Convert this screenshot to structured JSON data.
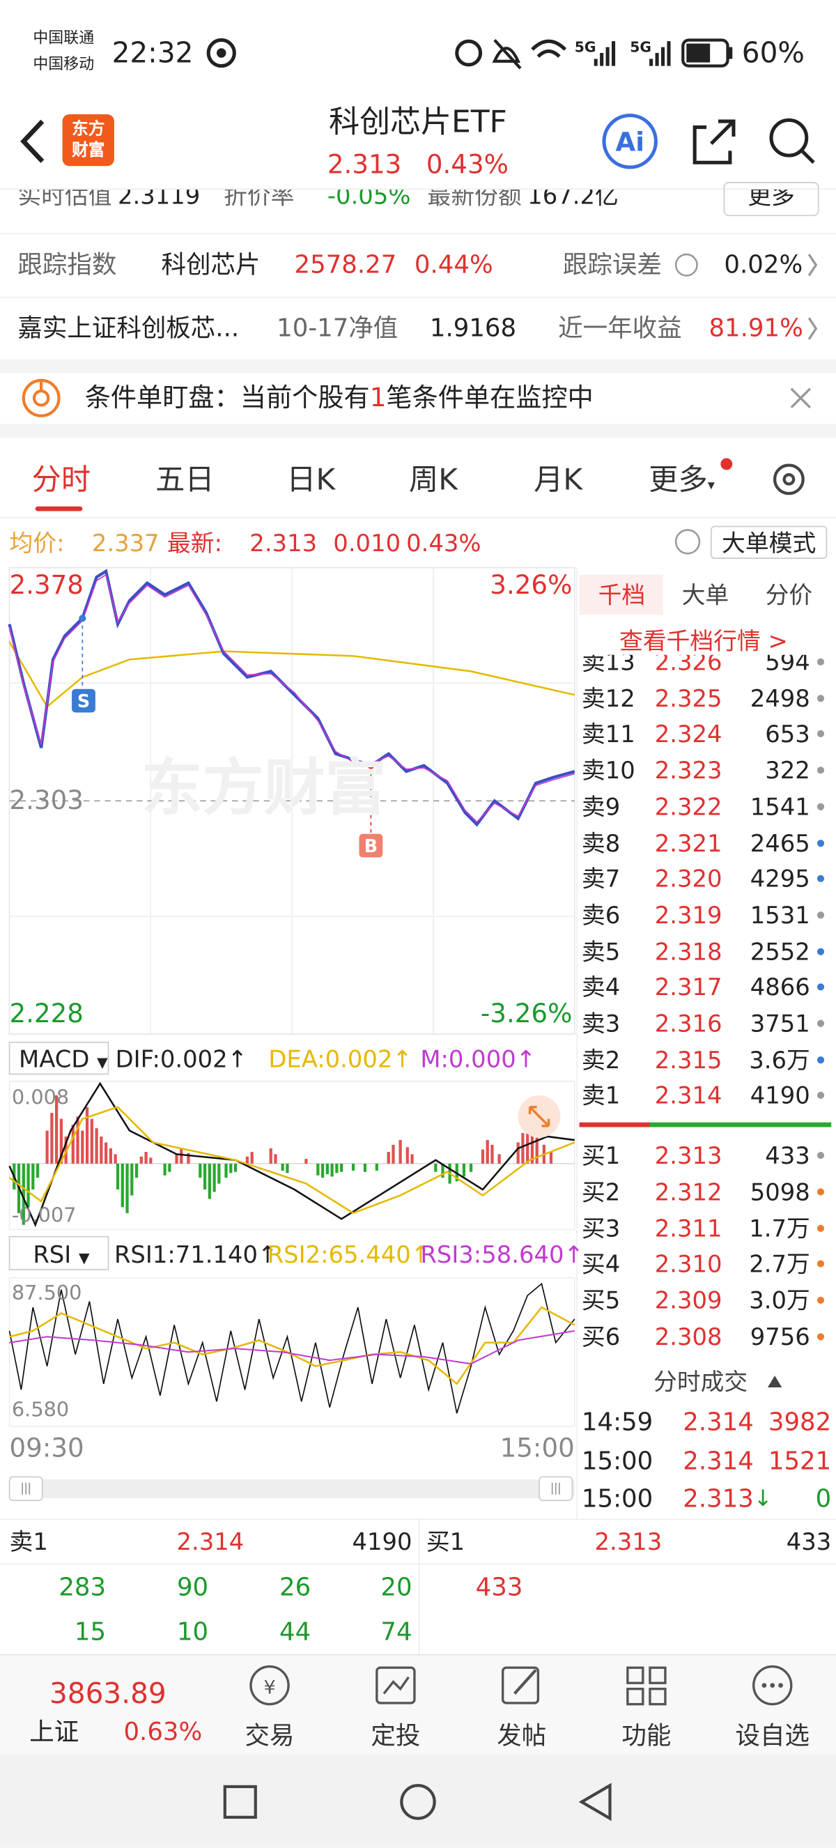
{
  "status": {
    "carrier1": "中国联通",
    "carrier2": "中国移动",
    "time": "22:32",
    "net1": "5G",
    "net2": "5G",
    "battery": "60%"
  },
  "header": {
    "logo": [
      "东方",
      "财富"
    ],
    "title": "科创芯片ETF",
    "price": "2.313",
    "change": "0.43%"
  },
  "info": {
    "row1": [
      "实时估值",
      "2.3119",
      "折价率",
      "-0.05%",
      "最新份额",
      "167.2亿",
      "更多"
    ],
    "row2": [
      "跟踪指数",
      "科创芯片",
      "2578.27",
      "0.44%",
      "跟踪误差",
      "0.02%"
    ],
    "row3": [
      "嘉实上证科创板芯...",
      "10-17净值",
      "1.9168",
      "近一年收益",
      "81.91%"
    ]
  },
  "alert": {
    "text1": "条件单盯盘：当前个股有",
    "count": "1",
    "text2": "笔条件单在监控中"
  },
  "tabs": [
    "分时",
    "五日",
    "日K",
    "周K",
    "月K",
    "更多"
  ],
  "quote": {
    "avg_label": "均价:",
    "avg": "2.337",
    "last_label": "最新:",
    "last": "2.313",
    "change": "0.010",
    "pct": "0.43%",
    "mode": "大单模式"
  },
  "chart": {
    "high": "2.378",
    "high_pct": "3.26%",
    "base": "2.303",
    "low": "2.228",
    "low_pct": "-3.26%",
    "watermark": "东方财富",
    "sell_mark": "S",
    "buy_mark": "B",
    "start": "09:30",
    "end": "15:00"
  },
  "macd": {
    "label": "MACD",
    "dif": "DIF:0.002↑",
    "dea": "DEA:0.002↑",
    "m": "M:0.000↑",
    "max": "0.008",
    "min": "-0.007"
  },
  "rsi": {
    "label": "RSI",
    "rsi1": "RSI1:71.140↑",
    "rsi2": "RSI2:65.440↑",
    "rsi3": "RSI3:58.640↑",
    "max": "87.500",
    "min": "6.580"
  },
  "book": {
    "tabs": [
      "千档",
      "大单",
      "分价"
    ],
    "link": "查看千档行情 >",
    "asks": [
      {
        "label": "卖13",
        "price": "2.326",
        "volume": "594",
        "dot": "#9a9a9a"
      },
      {
        "label": "卖12",
        "price": "2.325",
        "volume": "2498",
        "dot": "#9a9a9a"
      },
      {
        "label": "卖11",
        "price": "2.324",
        "volume": "653",
        "dot": "#9a9a9a"
      },
      {
        "label": "卖10",
        "price": "2.323",
        "volume": "322",
        "dot": "#9a9a9a"
      },
      {
        "label": "卖9",
        "price": "2.322",
        "volume": "1541",
        "dot": "#9a9a9a"
      },
      {
        "label": "卖8",
        "price": "2.321",
        "volume": "2465",
        "dot": "#3a7bd5"
      },
      {
        "label": "卖7",
        "price": "2.320",
        "volume": "4295",
        "dot": "#3a7bd5"
      },
      {
        "label": "卖6",
        "price": "2.319",
        "volume": "1531",
        "dot": "#9a9a9a"
      },
      {
        "label": "卖5",
        "price": "2.318",
        "volume": "2552",
        "dot": "#3a7bd5"
      },
      {
        "label": "卖4",
        "price": "2.317",
        "volume": "4866",
        "dot": "#3a7bd5"
      },
      {
        "label": "卖3",
        "price": "2.316",
        "volume": "3751",
        "dot": "#9a9a9a"
      },
      {
        "label": "卖2",
        "price": "2.315",
        "volume": "3.6万",
        "dot": "#3a7bd5"
      },
      {
        "label": "卖1",
        "price": "2.314",
        "volume": "4190",
        "dot": "#9a9a9a"
      }
    ],
    "bids": [
      {
        "label": "买1",
        "price": "2.313",
        "volume": "433",
        "dot": "#9a9a9a"
      },
      {
        "label": "买2",
        "price": "2.312",
        "volume": "5098",
        "dot": "#f07c2a"
      },
      {
        "label": "买3",
        "price": "2.311",
        "volume": "1.7万",
        "dot": "#f07c2a"
      },
      {
        "label": "买4",
        "price": "2.310",
        "volume": "2.7万",
        "dot": "#f07c2a"
      },
      {
        "label": "买5",
        "price": "2.309",
        "volume": "3.0万",
        "dot": "#f07c2a"
      },
      {
        "label": "买6",
        "price": "2.308",
        "volume": "9756",
        "dot": "#f07c2a"
      }
    ]
  },
  "trades": {
    "title": "分时成交",
    "rows": [
      {
        "time": "14:59",
        "price": "2.314",
        "volume": "3982"
      },
      {
        "time": "15:00",
        "price": "2.314",
        "volume": "1521"
      },
      {
        "time": "15:00",
        "price": "2.313",
        "arrow": "↓",
        "volume": "0"
      }
    ]
  },
  "depth": {
    "ask_label": "卖1",
    "ask_price": "2.314",
    "ask_volume": "4190",
    "bid_label": "买1",
    "bid_price": "2.313",
    "bid_volume": "433",
    "ask_orders": [
      [
        "283",
        "90",
        "26",
        "20"
      ],
      [
        "15",
        "10",
        "44",
        "74"
      ]
    ],
    "bid_orders": [
      "433"
    ]
  },
  "nav": {
    "index_value": "3863.89",
    "index_name": "上证",
    "index_change": "0.63%",
    "items": [
      "交易",
      "定投",
      "发帖",
      "功能",
      "设自选"
    ]
  }
}
